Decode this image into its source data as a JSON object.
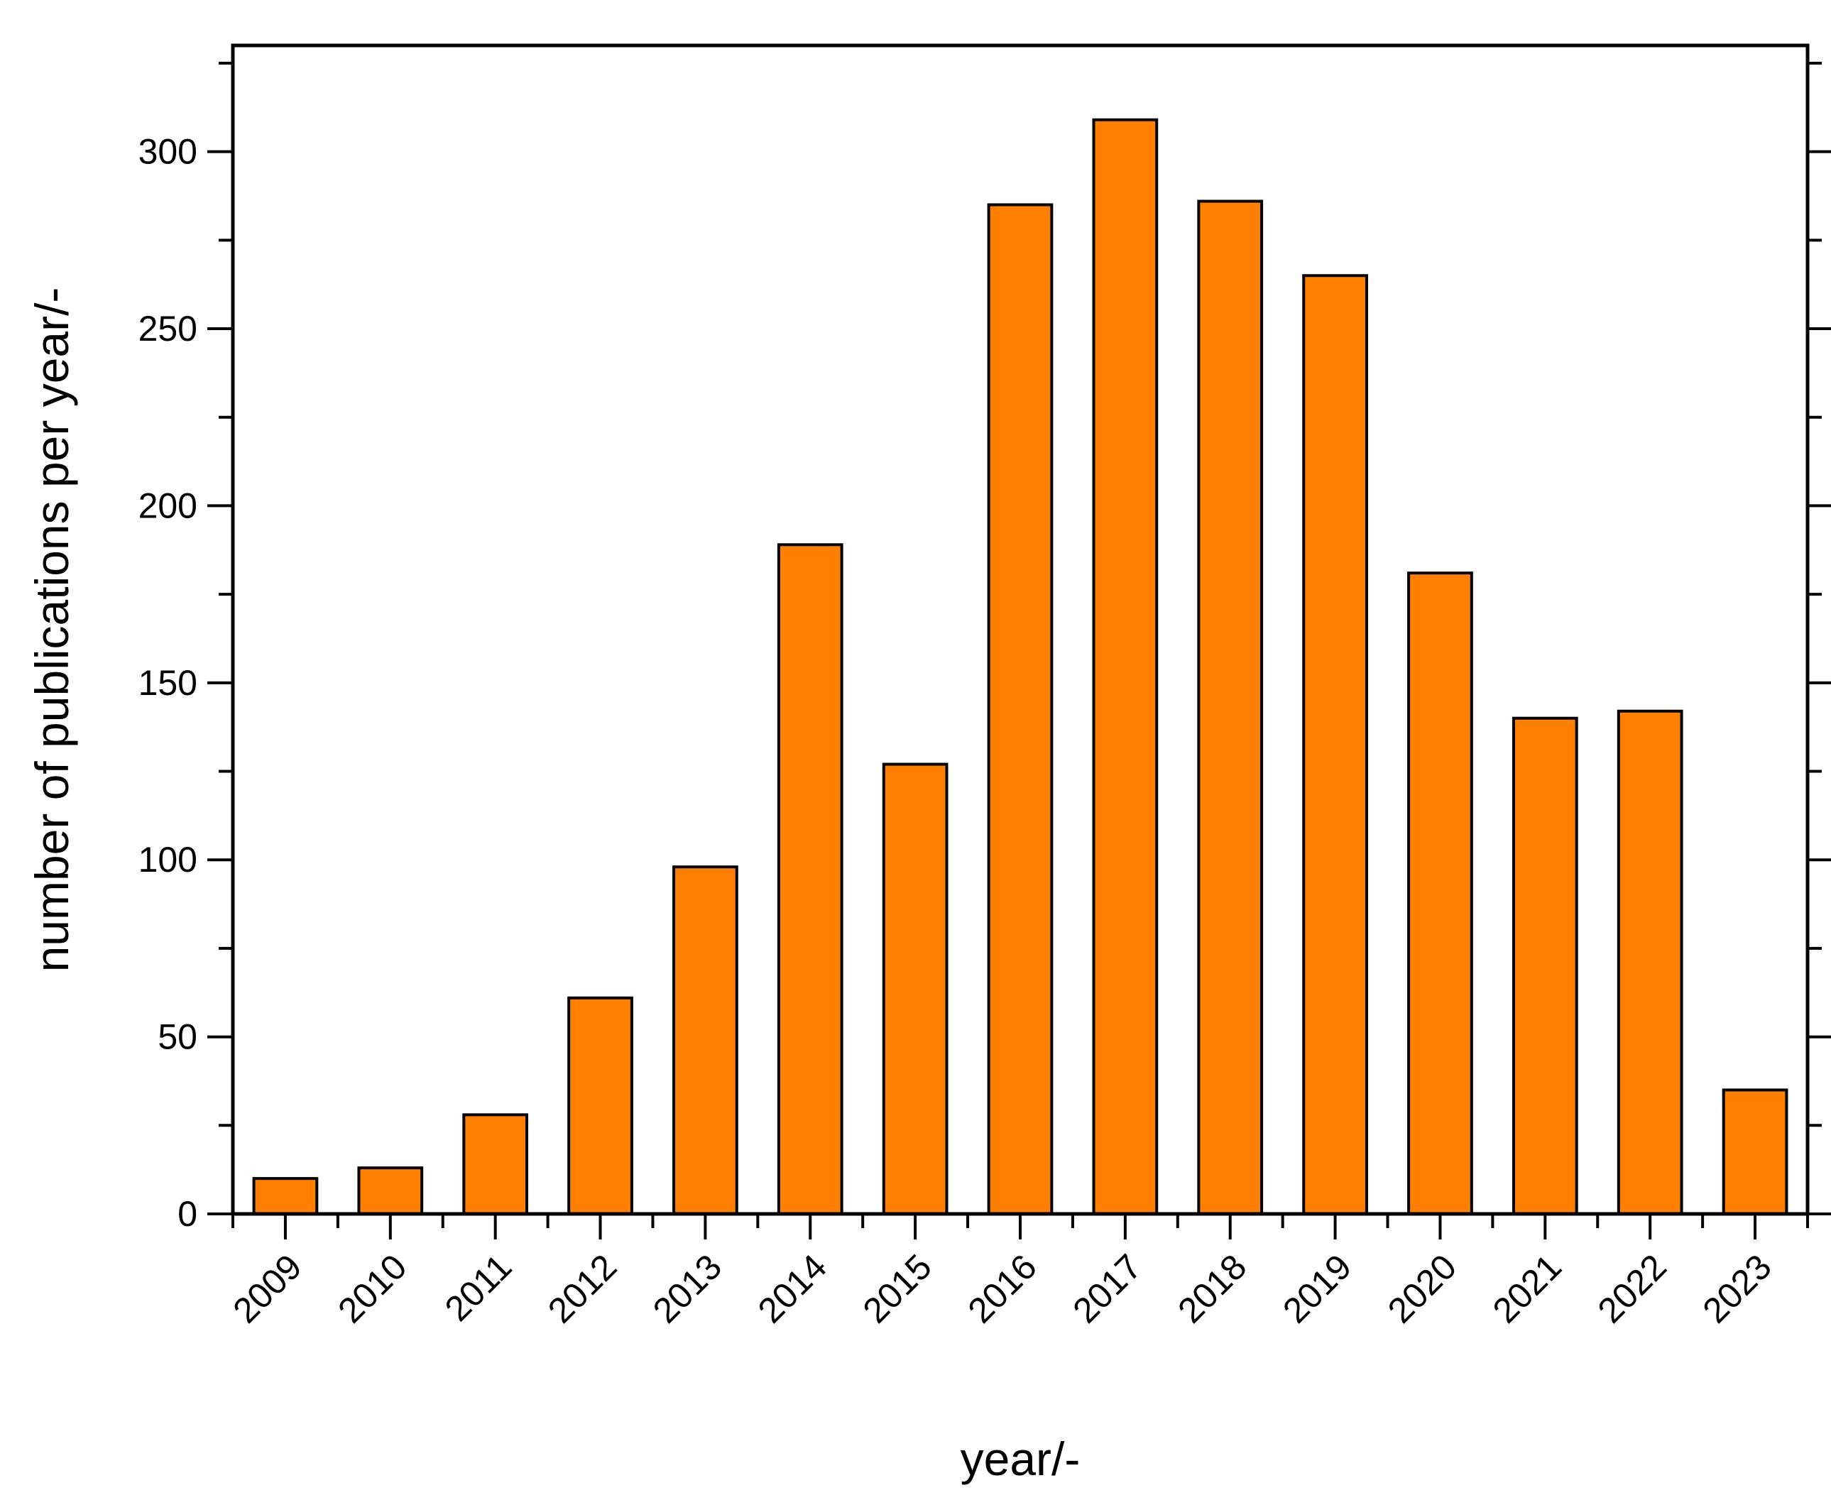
{
  "chart_data": {
    "type": "bar",
    "categories": [
      "2009",
      "2010",
      "2011",
      "2012",
      "2013",
      "2014",
      "2015",
      "2016",
      "2017",
      "2018",
      "2019",
      "2020",
      "2021",
      "2022",
      "2023"
    ],
    "series": [
      {
        "values": [
          10,
          13,
          28,
          61,
          98,
          189,
          127,
          285,
          309,
          286,
          265,
          181,
          140,
          142,
          35
        ],
        "color": "#ff8000"
      }
    ],
    "xlabel": "year/-",
    "ylabel": "number of publications per year/-",
    "ylim": [
      0,
      330
    ],
    "yticks": [
      0,
      50,
      100,
      150,
      200,
      250,
      300
    ],
    "y_minor_step": 25,
    "grid": false,
    "legend": "none",
    "x_tick_label_rotation": "45 degrees"
  }
}
